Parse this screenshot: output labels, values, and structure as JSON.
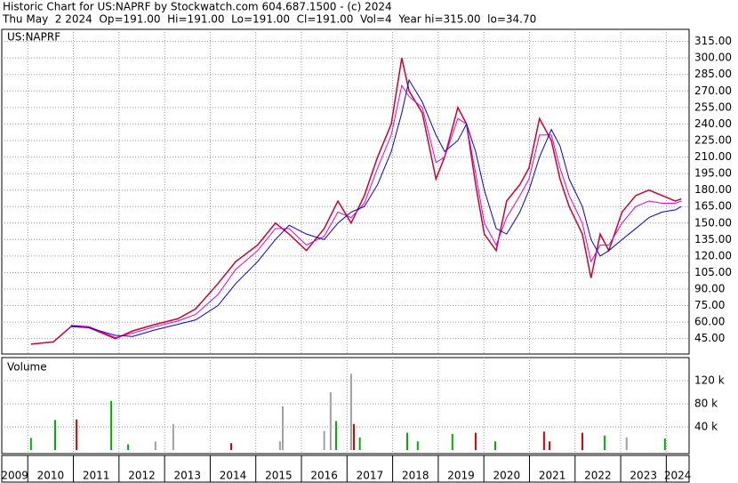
{
  "header": {
    "line1": "Historic Chart for US:NAPRF by Stockwatch.com 604.687.1500 - (c) 2024",
    "line2": "Thu May  2 2024  Op=191.00  Hi=191.00  Lo=191.00  Cl=191.00  Vol=4  Year hi=315.00  lo=34.70"
  },
  "chart_data": [
    {
      "type": "line",
      "title": "US:NAPRF",
      "x": [
        2010.07,
        2010.56,
        2010.95,
        2011.34,
        2011.92,
        2012.3,
        2012.8,
        2013.29,
        2013.68,
        2014.17,
        2014.56,
        2015.04,
        2015.43,
        2015.73,
        2016.11,
        2016.5,
        2016.8,
        2017.09,
        2017.38,
        2017.67,
        2017.97,
        2018.2,
        2018.36,
        2018.65,
        2018.95,
        2019.14,
        2019.43,
        2019.62,
        2019.82,
        2020.01,
        2020.27,
        2020.5,
        2020.79,
        2020.99,
        2021.22,
        2021.48,
        2021.67,
        2021.87,
        2022.16,
        2022.35,
        2022.55,
        2022.74,
        2023.03,
        2023.33,
        2023.62,
        2023.91,
        2024.2,
        2024.33
      ],
      "series": [
        {
          "color": "#d0002a",
          "values": [
            40,
            42,
            56,
            55,
            45,
            52,
            58,
            63,
            72,
            95,
            115,
            130,
            150,
            140,
            125,
            145,
            170,
            150,
            175,
            210,
            240,
            300,
            270,
            250,
            190,
            210,
            255,
            240,
            185,
            140,
            125,
            170,
            185,
            200,
            245,
            225,
            190,
            165,
            140,
            100,
            140,
            125,
            160,
            175,
            180,
            175,
            170,
            172
          ]
        },
        {
          "color": "#e000e0",
          "values": [
            null,
            null,
            57,
            56,
            46,
            50,
            56,
            61,
            67,
            85,
            108,
            125,
            145,
            145,
            130,
            138,
            160,
            155,
            168,
            200,
            230,
            275,
            265,
            255,
            205,
            210,
            245,
            240,
            195,
            150,
            130,
            155,
            175,
            190,
            230,
            230,
            200,
            175,
            150,
            115,
            130,
            130,
            150,
            165,
            170,
            168,
            168,
            170
          ]
        },
        {
          "color": "#0000e0",
          "values": [
            null,
            null,
            57,
            55,
            48,
            47,
            53,
            58,
            62,
            75,
            95,
            115,
            135,
            148,
            140,
            135,
            150,
            160,
            165,
            185,
            215,
            250,
            280,
            260,
            230,
            215,
            225,
            240,
            215,
            180,
            145,
            140,
            160,
            180,
            210,
            235,
            220,
            190,
            165,
            135,
            120,
            125,
            135,
            145,
            155,
            160,
            162,
            165
          ]
        }
      ],
      "xlim": [
        2009.43,
        2024.5
      ],
      "ylim": [
        31,
        326
      ],
      "yticks": [
        {
          "value": 45,
          "label": "45.00"
        },
        {
          "value": 60,
          "label": "60.00"
        },
        {
          "value": 75,
          "label": "75.00"
        },
        {
          "value": 90,
          "label": "90.00"
        },
        {
          "value": 105,
          "label": "105.00"
        },
        {
          "value": 120,
          "label": "120.00"
        },
        {
          "value": 135,
          "label": "135.00"
        },
        {
          "value": 150,
          "label": "150.00"
        },
        {
          "value": 165,
          "label": "165.00"
        },
        {
          "value": 180,
          "label": "180.00"
        },
        {
          "value": 195,
          "label": "195.00"
        },
        {
          "value": 210,
          "label": "210.00"
        },
        {
          "value": 225,
          "label": "225.00"
        },
        {
          "value": 240,
          "label": "240.00"
        },
        {
          "value": 255,
          "label": "255.00"
        },
        {
          "value": 270,
          "label": "270.00"
        },
        {
          "value": 285,
          "label": "285.00"
        },
        {
          "value": 300,
          "label": "300.00"
        },
        {
          "value": 315,
          "label": "315.00"
        }
      ],
      "grid": true
    },
    {
      "type": "bar",
      "title": "Volume",
      "x": [
        2010.07,
        2010.6,
        2011.07,
        2011.83,
        2012.2,
        2012.8,
        2013.19,
        2014.46,
        2015.53,
        2015.59,
        2016.5,
        2016.64,
        2016.76,
        2017.09,
        2017.15,
        2017.28,
        2018.32,
        2018.55,
        2019.31,
        2019.82,
        2020.25,
        2021.32,
        2021.44,
        2022.16,
        2022.65,
        2023.13,
        2023.97
      ],
      "values": [
        21000,
        52000,
        53000,
        85000,
        10000,
        15000,
        45000,
        12000,
        15000,
        76000,
        33000,
        100000,
        50000,
        132000,
        45000,
        22000,
        30000,
        15000,
        28000,
        30000,
        15000,
        32000,
        15000,
        30000,
        25000,
        22000,
        20000
      ],
      "colors": [
        "#00b000",
        "#00b000",
        "#e00000",
        "#00b000",
        "#00b000",
        "#a0a0a0",
        "#a0a0a0",
        "#e00000",
        "#a0a0a0",
        "#a0a0a0",
        "#a0a0a0",
        "#a0a0a0",
        "#00b000",
        "#a0a0a0",
        "#e00000",
        "#00b000",
        "#00b000",
        "#00b000",
        "#00b000",
        "#e00000",
        "#00b000",
        "#e00000",
        "#e00000",
        "#e00000",
        "#00b000",
        "#a0a0a0",
        "#00b000"
      ],
      "xlim": [
        2009.43,
        2024.5
      ],
      "ylim": [
        0,
        160000
      ],
      "yticks": [
        {
          "value": 40000,
          "label": "40 k"
        },
        {
          "value": 80000,
          "label": "80 k"
        },
        {
          "value": 120000,
          "label": "120 k"
        }
      ],
      "xticks": [
        2009,
        2010,
        2011,
        2012,
        2013,
        2014,
        2015,
        2016,
        2017,
        2018,
        2019,
        2020,
        2021,
        2022,
        2023,
        2024
      ]
    }
  ]
}
